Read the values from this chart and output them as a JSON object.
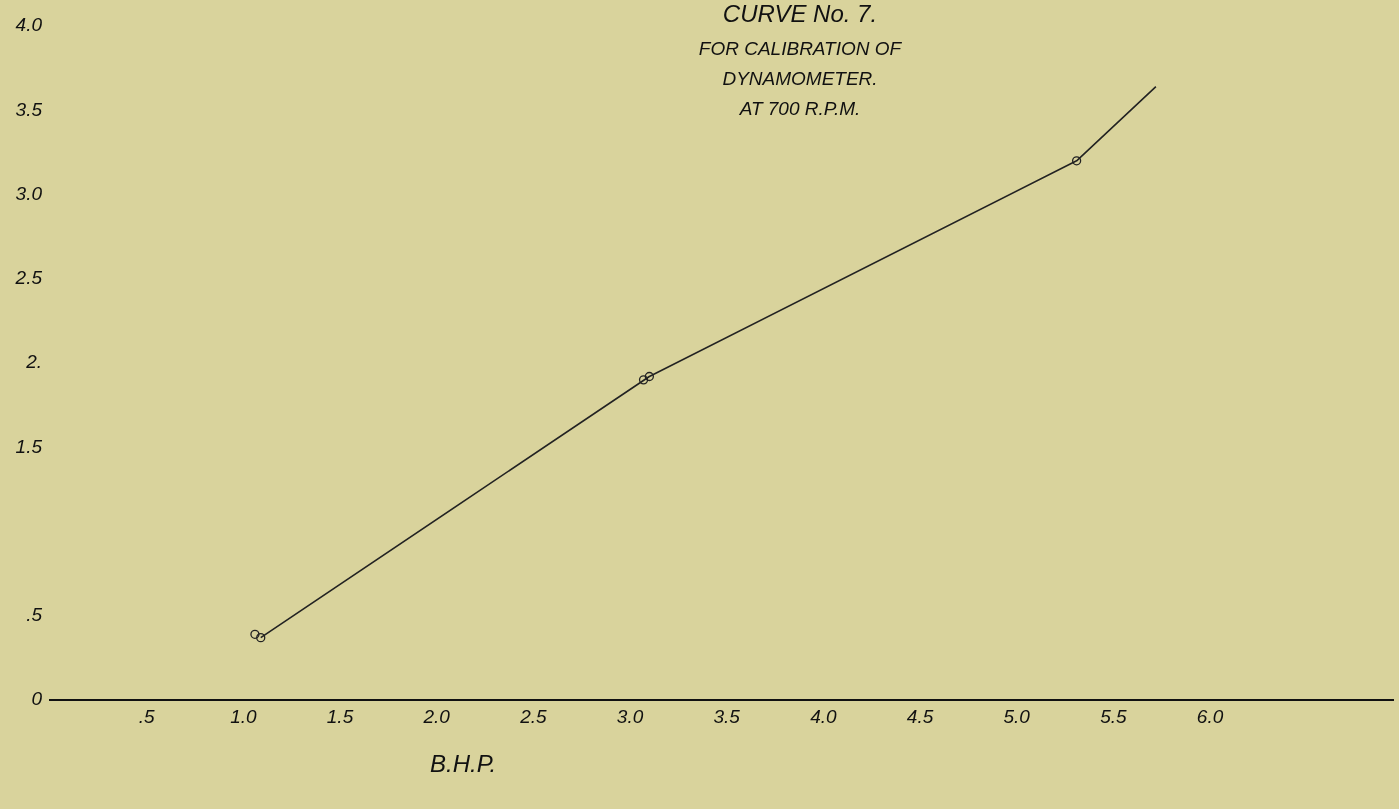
{
  "chart_data": {
    "type": "scatter",
    "title": "CURVE No. 7.",
    "subtitle": "FOR CALIBRATION OF\nDYNAMOMETER.\nAT 700 R.P.M.",
    "xlabel": "B.H.P.",
    "xlim": [
      0,
      6.95
    ],
    "ylim": [
      0,
      4.0
    ],
    "xticks": [
      {
        "value": 0.5,
        "label": ".5"
      },
      {
        "value": 1,
        "label": "1.0"
      },
      {
        "value": 1.5,
        "label": "1.5"
      },
      {
        "value": 2,
        "label": "2.0"
      },
      {
        "value": 2.5,
        "label": "2.5"
      },
      {
        "value": 3,
        "label": "3.0"
      },
      {
        "value": 3.5,
        "label": "3.5"
      },
      {
        "value": 4,
        "label": "4.0"
      },
      {
        "value": 4.5,
        "label": "4.5"
      },
      {
        "value": 5,
        "label": "5.0"
      },
      {
        "value": 5.5,
        "label": "5.5"
      },
      {
        "value": 6,
        "label": "6.0"
      }
    ],
    "yticks": [
      0,
      {
        "value": 0.5,
        "label": ".5"
      },
      1.5,
      {
        "value": 2,
        "label": "2."
      },
      2.5,
      {
        "value": 3,
        "label": "3.0"
      },
      3.5,
      {
        "value": 4,
        "label": "4.0"
      }
    ],
    "grid": false,
    "legend": false,
    "series": [
      {
        "marker": "circle",
        "color": "#222222",
        "x": [
          1.06,
          1.09,
          3.07,
          3.1,
          5.31
        ],
        "values": [
          0.39,
          0.37,
          1.9,
          1.92,
          3.2
        ]
      },
      {
        "type": "line",
        "marker": "none",
        "color": "#222222",
        "x": [
          1.09,
          3.1,
          5.31,
          5.72
        ],
        "values": [
          0.37,
          1.92,
          3.2,
          3.64
        ]
      }
    ]
  }
}
